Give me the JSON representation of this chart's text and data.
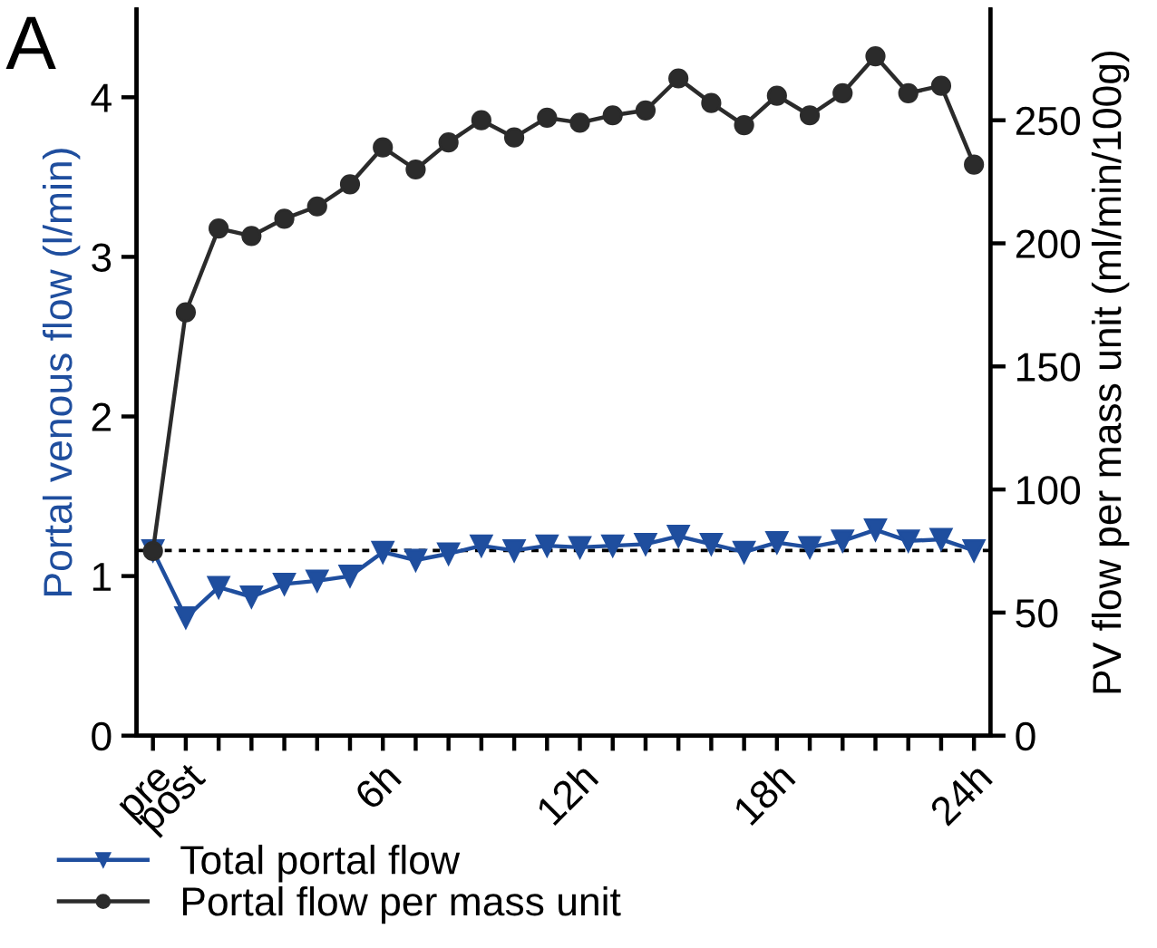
{
  "chart_data": {
    "type": "line",
    "annotations": [
      "A"
    ],
    "ylabel": "Portal venous flow (l/min)",
    "y2label": "PV flow per mass unit (ml/min/100g)",
    "categories": [
      "pre",
      "post",
      null,
      null,
      null,
      null,
      null,
      "6h",
      null,
      null,
      null,
      null,
      null,
      "12h",
      null,
      null,
      null,
      null,
      null,
      "18h",
      null,
      null,
      null,
      null,
      null,
      "24h"
    ],
    "series": [
      {
        "name": "Total portal flow",
        "color": "#1f4e9e",
        "marker": "triangle",
        "axis": "y",
        "values": [
          1.16,
          0.74,
          0.93,
          0.87,
          0.95,
          0.97,
          1.0,
          1.15,
          1.1,
          1.14,
          1.19,
          1.16,
          1.19,
          1.18,
          1.19,
          1.2,
          1.25,
          1.2,
          1.15,
          1.21,
          1.18,
          1.22,
          1.29,
          1.22,
          1.23,
          1.16
        ]
      },
      {
        "name": "Portal flow per mass unit",
        "color": "#2b2b2b",
        "marker": "circle",
        "axis": "y2",
        "values": [
          75,
          172,
          206,
          203,
          210,
          215,
          224,
          239,
          230,
          241,
          250,
          243,
          251,
          249,
          252,
          254,
          267,
          257,
          248,
          260,
          252,
          261,
          276,
          261,
          264,
          232
        ]
      }
    ],
    "ylim": [
      0,
      4.55
    ],
    "yticks": [
      0,
      1,
      2,
      3,
      4
    ],
    "y2lim": [
      0,
      295
    ],
    "y2ticks": [
      0,
      50,
      100,
      150,
      200,
      250
    ],
    "ref_lines": [
      {
        "axis": "y",
        "value": 1.16,
        "color": "#000000",
        "line_style": "dotted"
      }
    ],
    "line_style": "solid",
    "grid": false,
    "legend": "bottom left"
  }
}
